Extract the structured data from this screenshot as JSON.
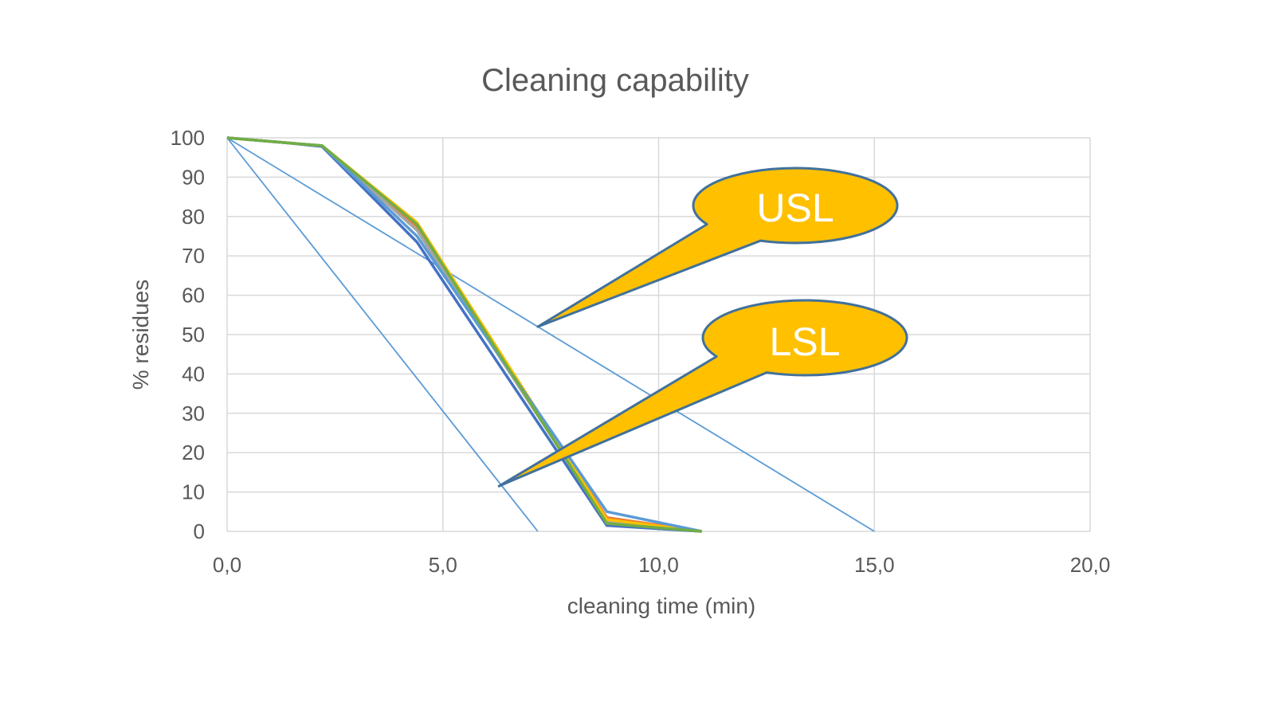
{
  "chart_data": {
    "type": "line",
    "title": "Cleaning capability",
    "xlabel": "cleaning time (min)",
    "ylabel": "% residues",
    "xlim": [
      0,
      20
    ],
    "ylim": [
      0,
      100
    ],
    "x_ticks": [
      0,
      5,
      10,
      15,
      20
    ],
    "x_tick_labels": [
      "0,0",
      "5,0",
      "10,0",
      "15,0",
      "20,0"
    ],
    "y_ticks": [
      0,
      10,
      20,
      30,
      40,
      50,
      60,
      70,
      80,
      90,
      100
    ],
    "y_tick_labels": [
      "0",
      "10",
      "20",
      "30",
      "40",
      "50",
      "60",
      "70",
      "80",
      "90",
      "100"
    ],
    "grid": true,
    "legend": "none",
    "series": [
      {
        "color": "#4472c4",
        "x": [
          0,
          1.3,
          2.2,
          4.4,
          8.8,
          11.0
        ],
        "y": [
          100,
          98.8,
          97.8,
          73.5,
          1.5,
          0
        ]
      },
      {
        "color": "#ed7d31",
        "x": [
          0,
          1.3,
          2.2,
          4.4,
          8.8,
          11.0
        ],
        "y": [
          100,
          98.8,
          98.0,
          77.5,
          3.5,
          0
        ]
      },
      {
        "color": "#a5a5a5",
        "x": [
          0,
          1.3,
          2.2,
          4.4,
          8.8,
          11.0
        ],
        "y": [
          100,
          98.8,
          98.0,
          76.5,
          2.5,
          0
        ]
      },
      {
        "color": "#ffc000",
        "x": [
          0,
          1.3,
          2.2,
          4.4,
          8.8,
          11.0
        ],
        "y": [
          100,
          98.8,
          98.0,
          78.5,
          3.0,
          0
        ]
      },
      {
        "color": "#5b9bd5",
        "x": [
          0,
          1.3,
          2.2,
          4.4,
          8.8,
          11.0
        ],
        "y": [
          100,
          98.8,
          98.0,
          75.0,
          5.0,
          0
        ]
      },
      {
        "color": "#70ad47",
        "x": [
          0,
          1.3,
          2.2,
          4.4,
          8.8,
          11.0
        ],
        "y": [
          100,
          98.8,
          98.0,
          78.0,
          2.0,
          0
        ]
      }
    ],
    "reference_lines": [
      {
        "id": "usl",
        "color": "#5b9bd5",
        "x": [
          0,
          15.0
        ],
        "y": [
          100,
          0
        ]
      },
      {
        "id": "lsl",
        "color": "#5b9bd5",
        "x": [
          0,
          7.2
        ],
        "y": [
          100,
          0
        ]
      }
    ],
    "annotations": [
      {
        "id": "usl-callout",
        "text": "USL",
        "fill": "#ffc000",
        "stroke": "#41719c",
        "target": [
          7.2,
          52
        ]
      },
      {
        "id": "lsl-callout",
        "text": "LSL",
        "fill": "#ffc000",
        "stroke": "#41719c",
        "target": [
          6.3,
          11.5
        ]
      }
    ]
  }
}
